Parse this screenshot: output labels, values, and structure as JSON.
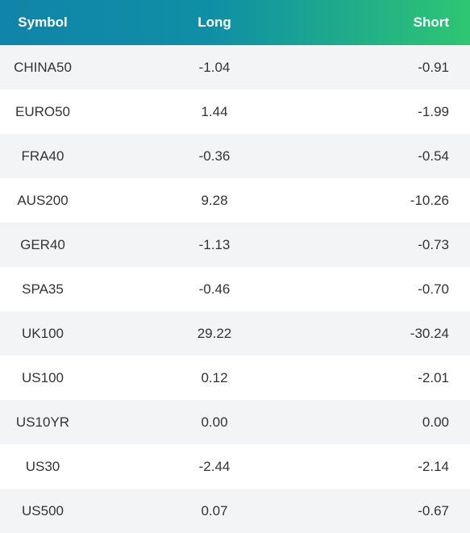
{
  "table": {
    "header": [
      "Symbol",
      "Long",
      "Short"
    ],
    "rows": [
      [
        "CHINA50",
        "-1.04",
        "-0.91"
      ],
      [
        "EURO50",
        "1.44",
        "-1.99"
      ],
      [
        "FRA40",
        "-0.36",
        "-0.54"
      ],
      [
        "AUS200",
        "9.28",
        "-10.26"
      ],
      [
        "GER40",
        "-1.13",
        "-0.73"
      ],
      [
        "SPA35",
        "-0.46",
        "-0.70"
      ],
      [
        "UK100",
        "29.22",
        "-30.24"
      ],
      [
        "US100",
        "0.12",
        "-2.01"
      ],
      [
        "US10YR",
        "0.00",
        "0.00"
      ],
      [
        "US30",
        "-2.44",
        "-2.14"
      ],
      [
        "US500",
        "0.07",
        "-0.67"
      ]
    ]
  }
}
